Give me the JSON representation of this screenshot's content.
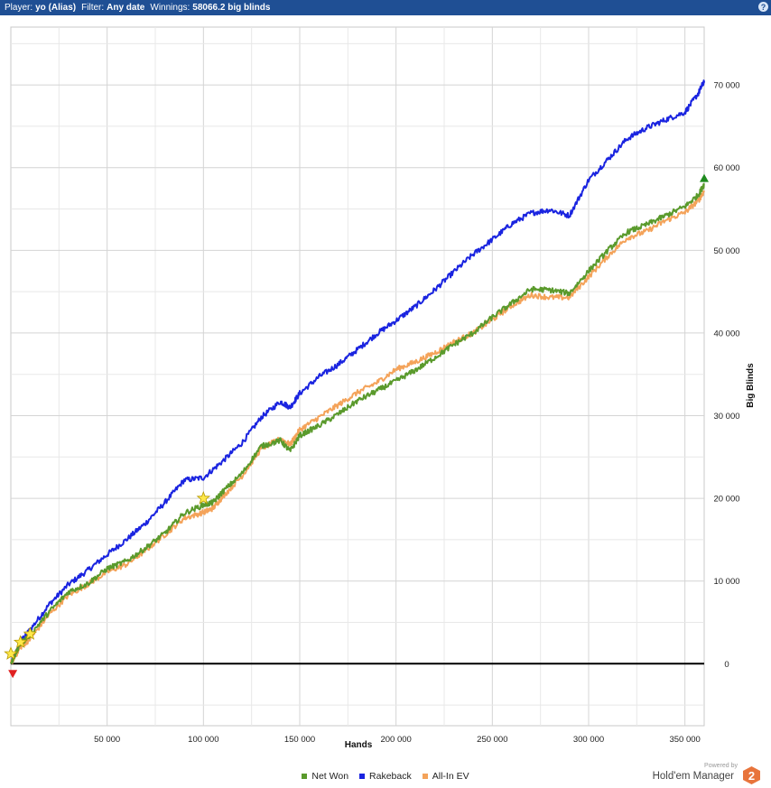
{
  "header": {
    "player_label": "Player:",
    "player_value": "yo (Alias)",
    "filter_label": "Filter:",
    "filter_value": "Any date",
    "winnings_label": "Winnings:",
    "winnings_value": "58066.2 big blinds",
    "help_icon": "question-icon",
    "background_color": "#1f4f94"
  },
  "chart_data": {
    "type": "line",
    "xlabel": "Hands",
    "ylabel": "Big Blinds",
    "xlim": [
      0,
      360000
    ],
    "ylim": [
      -7500,
      77000
    ],
    "x_ticks": [
      50000,
      100000,
      150000,
      200000,
      250000,
      300000,
      350000
    ],
    "x_tick_labels": [
      "50 000",
      "100 000",
      "150 000",
      "200 000",
      "250 000",
      "300 000",
      "350 000"
    ],
    "y_ticks": [
      0,
      10000,
      20000,
      30000,
      40000,
      50000,
      60000,
      70000
    ],
    "y_tick_labels": [
      "0",
      "10 000",
      "20 000",
      "30 000",
      "40 000",
      "50 000",
      "60 000",
      "70 000"
    ],
    "grid": true,
    "y_axis_position": "right",
    "legend_position": "bottom",
    "series": [
      {
        "name": "Net Won",
        "color": "#5a9a2c",
        "points": [
          [
            0,
            0
          ],
          [
            5000,
            2400
          ],
          [
            10000,
            3500
          ],
          [
            20000,
            6300
          ],
          [
            30000,
            8700
          ],
          [
            40000,
            9700
          ],
          [
            50000,
            11500
          ],
          [
            60000,
            12400
          ],
          [
            70000,
            14000
          ],
          [
            80000,
            15800
          ],
          [
            90000,
            18200
          ],
          [
            100000,
            19200
          ],
          [
            105000,
            19500
          ],
          [
            110000,
            20800
          ],
          [
            120000,
            23000
          ],
          [
            130000,
            26300
          ],
          [
            140000,
            27000
          ],
          [
            145000,
            25700
          ],
          [
            150000,
            27600
          ],
          [
            160000,
            28800
          ],
          [
            170000,
            30200
          ],
          [
            180000,
            31800
          ],
          [
            190000,
            33000
          ],
          [
            200000,
            34200
          ],
          [
            210000,
            35500
          ],
          [
            220000,
            37000
          ],
          [
            230000,
            38600
          ],
          [
            240000,
            40000
          ],
          [
            250000,
            41900
          ],
          [
            260000,
            43600
          ],
          [
            270000,
            45300
          ],
          [
            280000,
            45200
          ],
          [
            290000,
            44800
          ],
          [
            300000,
            47500
          ],
          [
            310000,
            50000
          ],
          [
            320000,
            52200
          ],
          [
            330000,
            53100
          ],
          [
            340000,
            54200
          ],
          [
            350000,
            55300
          ],
          [
            357000,
            56700
          ],
          [
            360000,
            58000
          ]
        ]
      },
      {
        "name": "Rakeback",
        "color": "#1a24e0",
        "points": [
          [
            0,
            0
          ],
          [
            5000,
            2700
          ],
          [
            10000,
            4100
          ],
          [
            20000,
            7200
          ],
          [
            30000,
            9600
          ],
          [
            40000,
            11300
          ],
          [
            50000,
            13200
          ],
          [
            60000,
            15000
          ],
          [
            70000,
            17000
          ],
          [
            80000,
            19500
          ],
          [
            90000,
            22200
          ],
          [
            100000,
            22500
          ],
          [
            110000,
            24500
          ],
          [
            120000,
            26700
          ],
          [
            130000,
            29800
          ],
          [
            140000,
            31700
          ],
          [
            145000,
            31000
          ],
          [
            150000,
            32700
          ],
          [
            160000,
            34700
          ],
          [
            170000,
            36200
          ],
          [
            180000,
            38000
          ],
          [
            190000,
            39900
          ],
          [
            200000,
            41500
          ],
          [
            210000,
            43200
          ],
          [
            220000,
            45200
          ],
          [
            230000,
            47400
          ],
          [
            240000,
            49500
          ],
          [
            250000,
            51300
          ],
          [
            260000,
            53200
          ],
          [
            270000,
            54500
          ],
          [
            280000,
            54900
          ],
          [
            290000,
            54200
          ],
          [
            300000,
            58500
          ],
          [
            310000,
            61000
          ],
          [
            320000,
            63500
          ],
          [
            330000,
            64800
          ],
          [
            340000,
            65800
          ],
          [
            350000,
            66700
          ],
          [
            357000,
            69000
          ],
          [
            360000,
            70500
          ]
        ]
      },
      {
        "name": "All-In EV",
        "color": "#f4a35a",
        "points": [
          [
            0,
            0
          ],
          [
            5000,
            2000
          ],
          [
            10000,
            3000
          ],
          [
            20000,
            6000
          ],
          [
            30000,
            8300
          ],
          [
            40000,
            9600
          ],
          [
            50000,
            11100
          ],
          [
            60000,
            12000
          ],
          [
            70000,
            13700
          ],
          [
            80000,
            15600
          ],
          [
            90000,
            17600
          ],
          [
            100000,
            18300
          ],
          [
            105000,
            18800
          ],
          [
            110000,
            20200
          ],
          [
            120000,
            22700
          ],
          [
            130000,
            26000
          ],
          [
            140000,
            27200
          ],
          [
            145000,
            26500
          ],
          [
            150000,
            28300
          ],
          [
            160000,
            29800
          ],
          [
            170000,
            31300
          ],
          [
            180000,
            32800
          ],
          [
            190000,
            34000
          ],
          [
            200000,
            35600
          ],
          [
            210000,
            36500
          ],
          [
            220000,
            37600
          ],
          [
            230000,
            38900
          ],
          [
            240000,
            40000
          ],
          [
            250000,
            41600
          ],
          [
            260000,
            43300
          ],
          [
            270000,
            44600
          ],
          [
            280000,
            44300
          ],
          [
            290000,
            44300
          ],
          [
            300000,
            46800
          ],
          [
            310000,
            49300
          ],
          [
            320000,
            51500
          ],
          [
            330000,
            52300
          ],
          [
            340000,
            53600
          ],
          [
            350000,
            54600
          ],
          [
            357000,
            56000
          ],
          [
            360000,
            57200
          ]
        ]
      }
    ],
    "markers": [
      {
        "kind": "star",
        "x": 0,
        "y": 1200,
        "color": "#ffe84a"
      },
      {
        "kind": "star",
        "x": 5000,
        "y": 2600,
        "color": "#ffe84a"
      },
      {
        "kind": "star",
        "x": 10000,
        "y": 3600,
        "color": "#ffe84a"
      },
      {
        "kind": "star",
        "x": 100000,
        "y": 20000,
        "color": "#ffe84a"
      },
      {
        "kind": "triangle-down",
        "x": 1000,
        "y": -1200,
        "color": "#e02020"
      },
      {
        "kind": "triangle-up",
        "x": 360000,
        "y": 58700,
        "color": "#1e8a1e"
      }
    ]
  },
  "brand": {
    "powered_by": "Powered by",
    "name": "Hold'em Manager",
    "logo_text": "2"
  }
}
